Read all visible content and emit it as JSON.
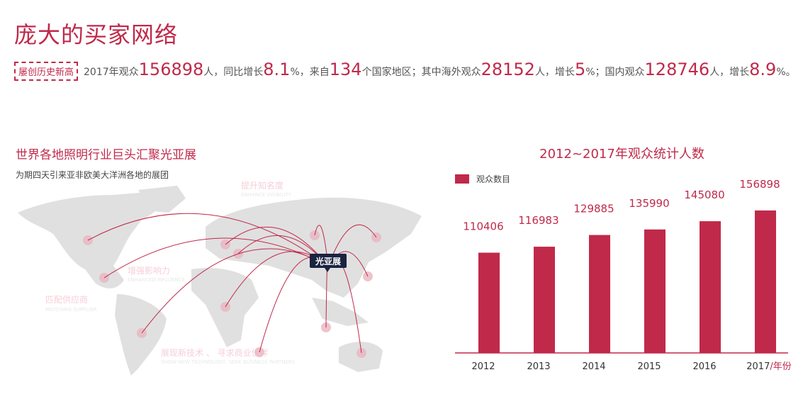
{
  "header": {
    "title": "庞大的买家网络"
  },
  "stats": {
    "badge": "屡创历史新高",
    "t1": "2017年观众",
    "v1": "156898",
    "t2": "人，同比增长",
    "v2": "8.1",
    "t3": "%，来自",
    "v3": "134",
    "t4": "个国家地区；其中海外观众",
    "v4": "28152",
    "t5": "人，增长",
    "v5": "5",
    "t6": "%；国内观众",
    "v6": "128746",
    "t7": "人，增长",
    "v7": "8.9",
    "t8": "%。"
  },
  "map": {
    "title": "世界各地照明行业巨头汇聚光亚展",
    "subtitle": "为期四天引来亚非欧美大洋洲各地的展团",
    "hub_label": "光亚展",
    "captions": [
      {
        "cn": "提升知名度",
        "en": "ENHANCE VISIBILITY"
      },
      {
        "cn": "增强影响力",
        "en": "ENHANCED INFLUENCE"
      },
      {
        "cn": "匹配供应商",
        "en": "MATCHING SUPPLIER"
      },
      {
        "cn": "展现新技术 、 寻求商业伙伴",
        "en": "SHOW NEW TECHNOLOGY, SEEK BUSINESS PARTNERS"
      }
    ]
  },
  "colors": {
    "accent": "#c0294a",
    "map_land": "#e0e0e0",
    "hub_bg": "#1a2340"
  },
  "chart_data": {
    "type": "bar",
    "title": "2012~2017年观众统计人数",
    "categories": [
      "2012",
      "2013",
      "2014",
      "2015",
      "2016",
      "2017"
    ],
    "xunit": "/年份",
    "series": [
      {
        "name": "观众数目",
        "values": [
          110406,
          116983,
          129885,
          135990,
          145080,
          156898
        ]
      }
    ],
    "ylim": [
      0,
      160000
    ],
    "grid": false,
    "legend": "top-left"
  }
}
